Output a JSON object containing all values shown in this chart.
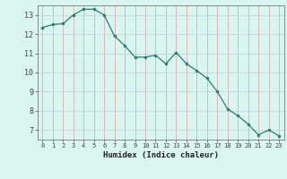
{
  "x": [
    0,
    1,
    2,
    3,
    4,
    5,
    6,
    7,
    8,
    9,
    10,
    11,
    12,
    13,
    14,
    15,
    16,
    17,
    18,
    19,
    20,
    21,
    22,
    23
  ],
  "y": [
    12.35,
    12.5,
    12.55,
    13.0,
    13.3,
    13.3,
    13.0,
    11.9,
    11.4,
    10.8,
    10.8,
    10.9,
    10.45,
    11.05,
    10.45,
    10.1,
    9.7,
    9.0,
    8.1,
    7.75,
    7.3,
    6.75,
    7.0,
    6.7
  ],
  "line_color": "#2e7d6e",
  "marker_color": "#2e7d6e",
  "bg_color": "#d8f5f0",
  "grid_color": "#c8e8e0",
  "xlabel": "Humidex (Indice chaleur)",
  "xlim": [
    -0.5,
    23.5
  ],
  "ylim": [
    6.5,
    13.5
  ],
  "yticks": [
    7,
    8,
    9,
    10,
    11,
    12,
    13
  ],
  "xticks": [
    0,
    1,
    2,
    3,
    4,
    5,
    6,
    7,
    8,
    9,
    10,
    11,
    12,
    13,
    14,
    15,
    16,
    17,
    18,
    19,
    20,
    21,
    22,
    23
  ]
}
